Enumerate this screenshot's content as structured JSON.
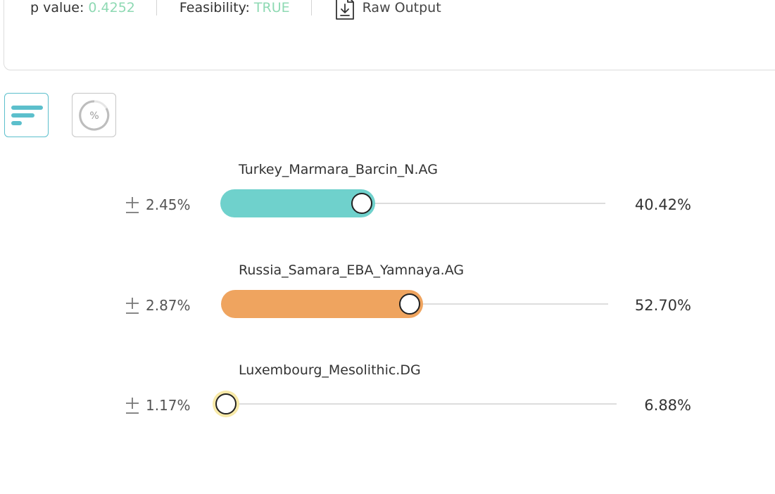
{
  "summary": {
    "p_value_label": "p value:",
    "p_value": "0.4252",
    "feasibility_label": "Feasibility:",
    "feasibility": "TRUE",
    "raw_output_label": "Raw Output",
    "value_color": "#8ed9b3"
  },
  "view_toggle": {
    "bar_view_icon": "bar-list-icon",
    "percent_view_icon": "percent-circle-icon",
    "bar_view_selected": true
  },
  "sources": [
    {
      "name": "Turkey_Marmara_Barcin_N.AG",
      "error": "2.45%",
      "percent": "40.42%",
      "value": 40.42,
      "color": "#6fd1cc"
    },
    {
      "name": "Russia_Samara_EBA_Yamnaya.AG",
      "error": "2.87%",
      "percent": "52.70%",
      "value": 52.7,
      "color": "#efa45f"
    },
    {
      "name": "Luxembourg_Mesolithic.DG",
      "error": "1.17%",
      "percent": "6.88%",
      "value": 6.88,
      "color": "#f7e9a8"
    }
  ]
}
